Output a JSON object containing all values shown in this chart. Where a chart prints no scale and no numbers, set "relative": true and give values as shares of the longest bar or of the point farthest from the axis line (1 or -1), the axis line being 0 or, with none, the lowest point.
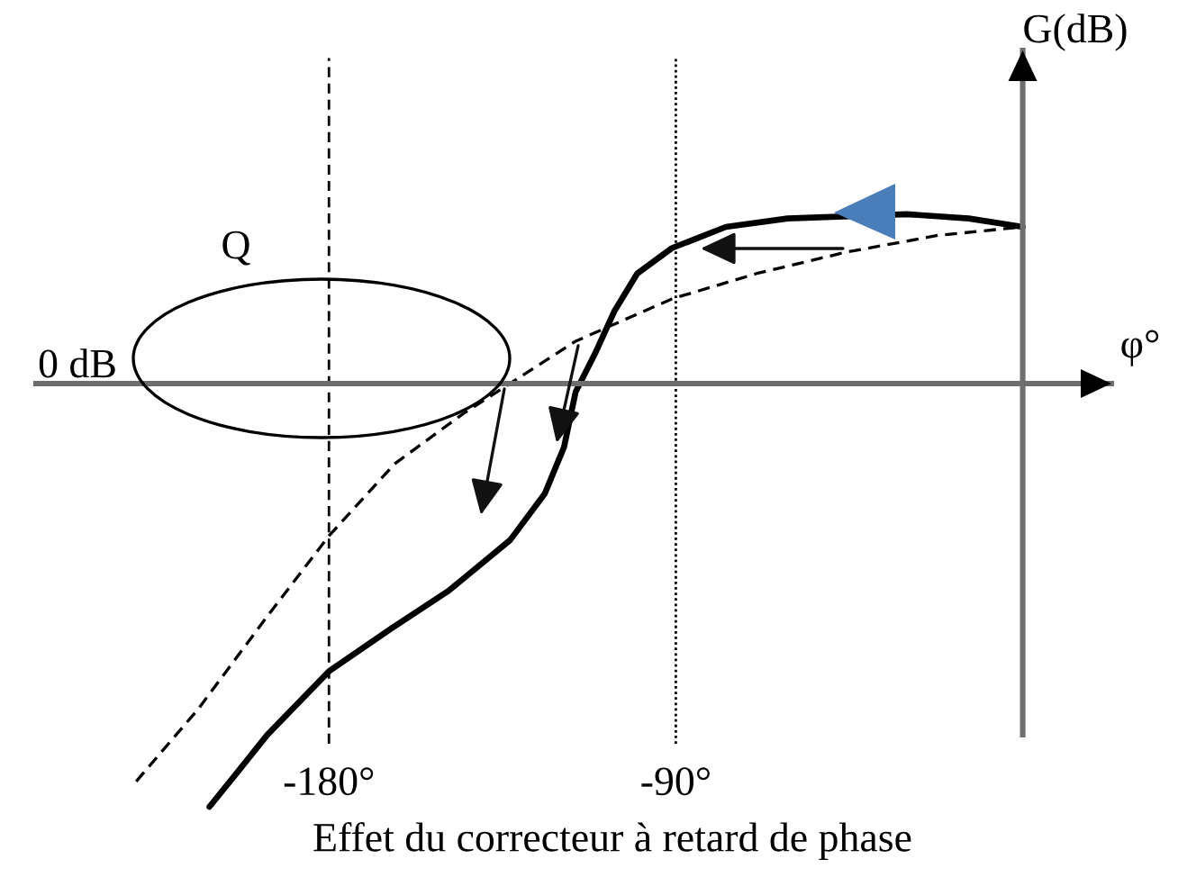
{
  "chart_data": {
    "type": "line",
    "relative": true,
    "xlabel": "φ°",
    "ylabel": "G(dB)",
    "xlim": [
      -256,
      23
    ],
    "xticks": [
      {
        "value": -180,
        "label": "-180°"
      },
      {
        "value": -90,
        "label": "-90°"
      }
    ],
    "series": [
      {
        "color": "#000000",
        "line_style": "solid",
        "x": [
          -211,
          -203,
          -196,
          -180,
          -164,
          -149,
          -133,
          -124,
          -119,
          -116,
          -111,
          -106,
          -100,
          -91,
          -77,
          -61,
          -30,
          -14,
          0
        ],
        "values": [
          -1.0,
          -0.91,
          -0.83,
          -0.68,
          -0.58,
          -0.49,
          -0.37,
          -0.26,
          -0.15,
          -0.02,
          0.07,
          0.17,
          0.26,
          0.32,
          0.37,
          0.39,
          0.4,
          0.39,
          0.37
        ]
      },
      {
        "color": "#000000",
        "line_style": "dashed",
        "x": [
          -230,
          -214,
          -196,
          -180,
          -163,
          -145,
          -133,
          -116,
          -91,
          -69,
          -46,
          -22,
          0
        ],
        "values": [
          -0.94,
          -0.77,
          -0.55,
          -0.36,
          -0.19,
          -0.07,
          0.0,
          0.1,
          0.2,
          0.26,
          0.31,
          0.35,
          0.37
        ]
      }
    ],
    "ref_lines": [
      {
        "axis": "x",
        "value": -180,
        "color": "#000000",
        "line_style": "dashed"
      },
      {
        "axis": "x",
        "value": -90,
        "color": "#000000",
        "line_style": "dotted"
      }
    ],
    "annotations": [
      "Q",
      "0 dB",
      "Effet du correcteur à retard de phase"
    ],
    "grid": false,
    "legend": false
  }
}
